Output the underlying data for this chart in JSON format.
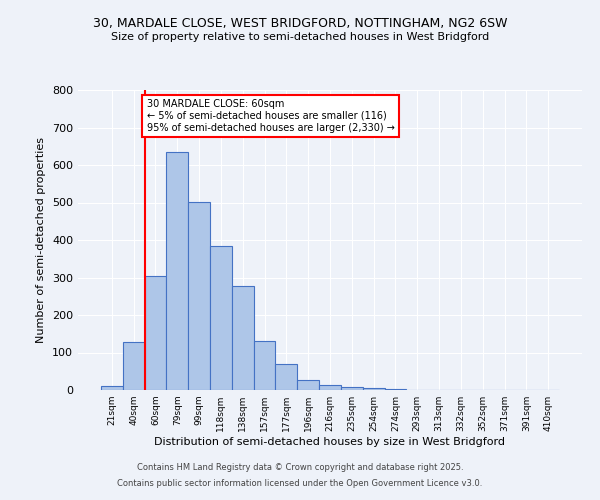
{
  "title_line1": "30, MARDALE CLOSE, WEST BRIDGFORD, NOTTINGHAM, NG2 6SW",
  "title_line2": "Size of property relative to semi-detached houses in West Bridgford",
  "xlabel": "Distribution of semi-detached houses by size in West Bridgford",
  "ylabel": "Number of semi-detached properties",
  "categories": [
    "21sqm",
    "40sqm",
    "60sqm",
    "79sqm",
    "99sqm",
    "118sqm",
    "138sqm",
    "157sqm",
    "177sqm",
    "196sqm",
    "216sqm",
    "235sqm",
    "254sqm",
    "274sqm",
    "293sqm",
    "313sqm",
    "332sqm",
    "352sqm",
    "371sqm",
    "391sqm",
    "410sqm"
  ],
  "values": [
    10,
    128,
    303,
    635,
    502,
    383,
    278,
    132,
    70,
    26,
    13,
    8,
    5,
    4,
    0,
    0,
    0,
    0,
    0,
    0,
    0
  ],
  "bar_color": "#aec6e8",
  "bar_edge_color": "#4472c4",
  "marker_line_color": "red",
  "annotation_text": "30 MARDALE CLOSE: 60sqm\n← 5% of semi-detached houses are smaller (116)\n95% of semi-detached houses are larger (2,330) →",
  "annotation_box_color": "white",
  "annotation_box_edge_color": "red",
  "footer_line1": "Contains HM Land Registry data © Crown copyright and database right 2025.",
  "footer_line2": "Contains public sector information licensed under the Open Government Licence v3.0.",
  "background_color": "#eef2f9",
  "ylim": [
    0,
    800
  ],
  "yticks": [
    0,
    100,
    200,
    300,
    400,
    500,
    600,
    700,
    800
  ]
}
